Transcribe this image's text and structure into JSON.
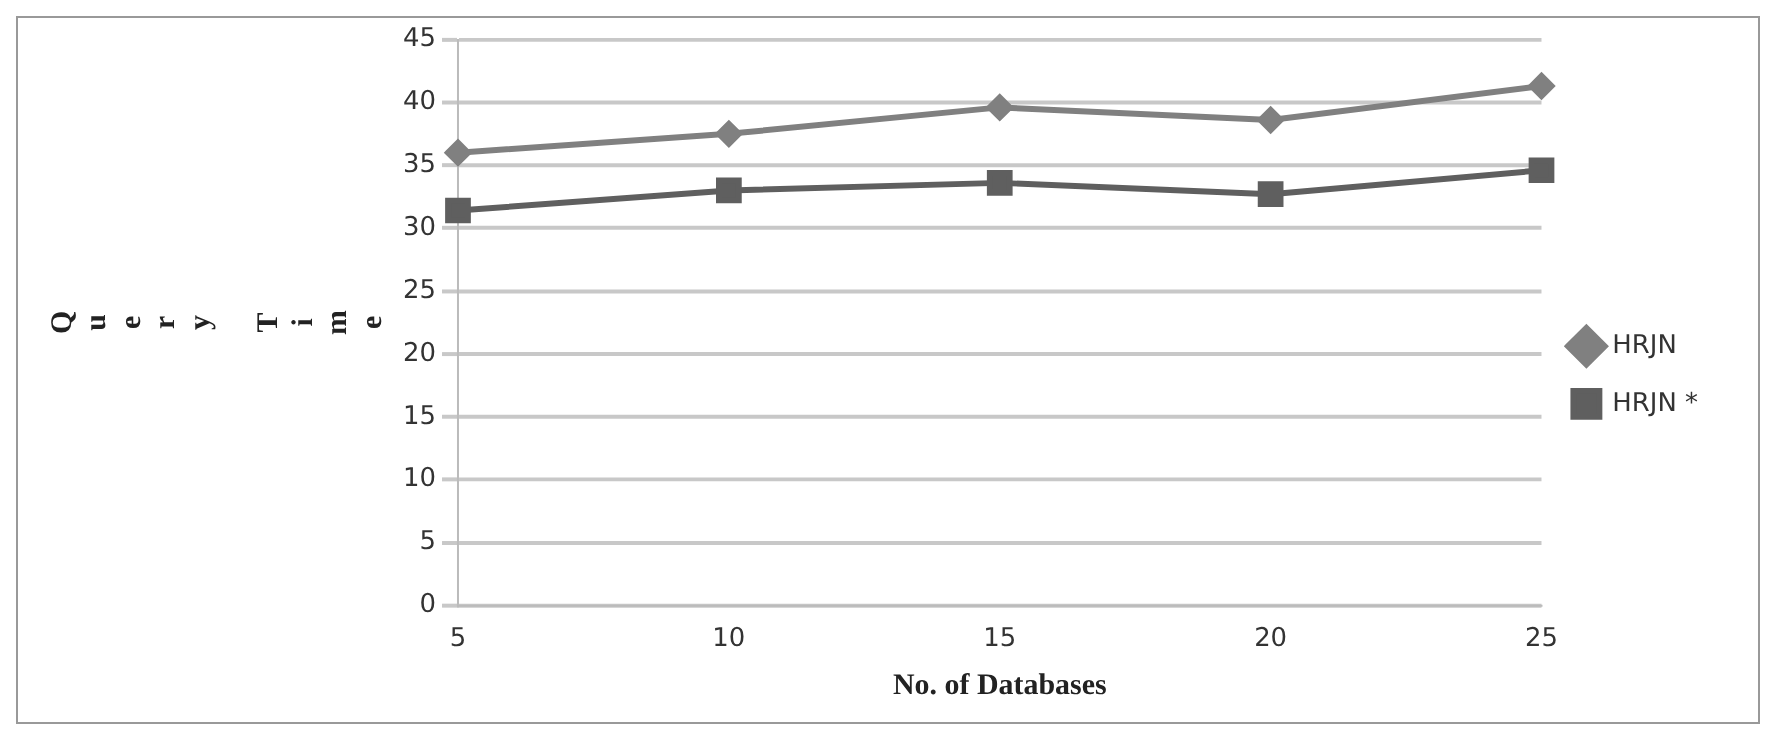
{
  "chart_data": {
    "type": "line",
    "xlabel": "No. of Databases",
    "ylabel": "Query Time",
    "categories": [
      "5",
      "10",
      "15",
      "20",
      "25"
    ],
    "series": [
      {
        "name": "HRJN",
        "color": "#808080",
        "marker": "diamond",
        "values": [
          36,
          37.5,
          39.6,
          38.6,
          41.3
        ]
      },
      {
        "name": "HRJN *",
        "color": "#5f5f5f",
        "marker": "square",
        "values": [
          31.4,
          33,
          33.6,
          32.7,
          34.6
        ]
      }
    ],
    "ylim": [
      0,
      45
    ],
    "yticks": [
      0,
      5,
      10,
      15,
      20,
      25,
      30,
      35,
      40,
      45
    ],
    "grid": "y",
    "legend": "right",
    "line_style": "solid"
  }
}
